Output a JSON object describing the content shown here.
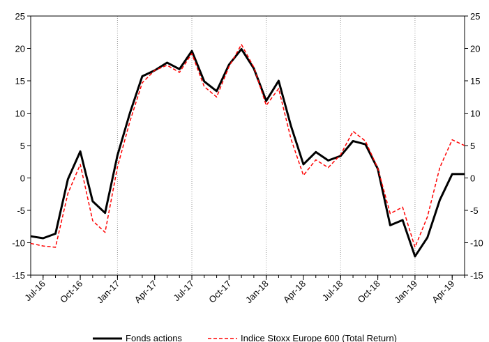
{
  "chart_data": {
    "type": "line",
    "x": [
      "2016-06",
      "2016-07",
      "2016-08",
      "2016-09",
      "2016-10",
      "2016-11",
      "2016-12",
      "2017-01",
      "2017-02",
      "2017-03",
      "2017-04",
      "2017-05",
      "2017-06",
      "2017-07",
      "2017-08",
      "2017-09",
      "2017-10",
      "2017-11",
      "2017-12",
      "2018-01",
      "2018-02",
      "2018-03",
      "2018-04",
      "2018-05",
      "2018-06",
      "2018-07",
      "2018-08",
      "2018-09",
      "2018-10",
      "2018-11",
      "2018-12",
      "2019-01",
      "2019-02",
      "2019-03",
      "2019-04",
      "2019-05"
    ],
    "x_tick_labels": [
      "Jul-16",
      "Oct-16",
      "Jan-17",
      "Apr-17",
      "Jul-17",
      "Oct-17",
      "Jan-18",
      "Apr-18",
      "Jul-18",
      "Oct-18",
      "Jan-19",
      "Apr-19"
    ],
    "series": [
      {
        "name": "Fonds actions",
        "color": "#000000",
        "style": "solid",
        "values": [
          -9.0,
          -9.3,
          -8.6,
          -0.2,
          4.1,
          -3.6,
          -5.4,
          3.5,
          10.0,
          15.7,
          16.6,
          17.8,
          16.8,
          19.6,
          14.9,
          13.4,
          17.5,
          19.9,
          16.9,
          11.9,
          15.0,
          8.0,
          2.1,
          4.0,
          2.7,
          3.4,
          5.7,
          5.2,
          1.4,
          -7.3,
          -6.5,
          -12.1,
          -9.2,
          -3.4,
          0.6,
          0.6
        ]
      },
      {
        "name": "Indice Stoxx Europe 600 (Total Return)",
        "color": "#ff0000",
        "style": "dashed",
        "values": [
          -10.1,
          -10.5,
          -10.7,
          -2.4,
          2.1,
          -6.6,
          -8.4,
          1.7,
          8.7,
          14.7,
          16.6,
          17.4,
          16.3,
          19.2,
          14.1,
          12.5,
          17.2,
          20.6,
          17.1,
          11.2,
          13.8,
          6.0,
          0.4,
          2.8,
          1.6,
          3.6,
          7.2,
          5.7,
          1.5,
          -5.5,
          -4.5,
          -10.7,
          -6.0,
          1.6,
          5.9,
          5.0
        ]
      }
    ],
    "xlabel": "",
    "ylabel": "",
    "ylim": [
      -15,
      25
    ],
    "y_ticks_left": [
      "25",
      "20",
      "15",
      "10",
      "5",
      "0",
      "-5",
      "-10",
      "-15"
    ],
    "y_ticks_right": [
      "25",
      "20",
      "15",
      "10",
      "5",
      "0",
      "-5",
      "-10",
      "-15"
    ],
    "grid": "vertical dotted",
    "legend": "bottom"
  }
}
